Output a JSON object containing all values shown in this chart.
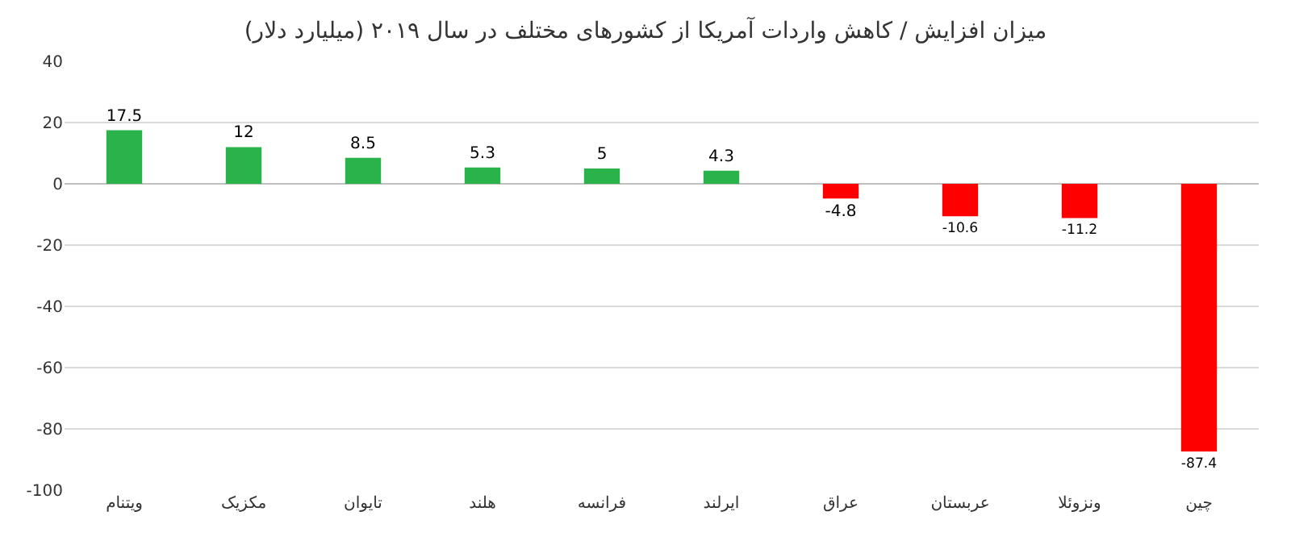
{
  "chart_data": {
    "type": "bar",
    "title": "میزان افزایش / کاهش واردات آمریکا از کشورهای مختلف در سال ۲۰۱۹ (میلیارد دلار)",
    "categories": [
      "ویتنام",
      "مکزیک",
      "تایوان",
      "هلند",
      "فرانسه",
      "ایرلند",
      "عراق",
      "عربستان",
      "ونزوئلا",
      "چین"
    ],
    "values": [
      17.5,
      12,
      8.5,
      5.3,
      5,
      4.3,
      -4.8,
      -10.6,
      -11.2,
      -87.4
    ],
    "colors": [
      "#2ab34a",
      "#2ab34a",
      "#2ab34a",
      "#2ab34a",
      "#2ab34a",
      "#2ab34a",
      "#ff0000",
      "#ff0000",
      "#ff0000",
      "#ff0000"
    ],
    "ylim": [
      -100,
      40
    ],
    "yticks": [
      -100,
      -80,
      -60,
      -40,
      -20,
      0,
      20,
      40
    ],
    "grid": "y",
    "data_labels": true
  }
}
